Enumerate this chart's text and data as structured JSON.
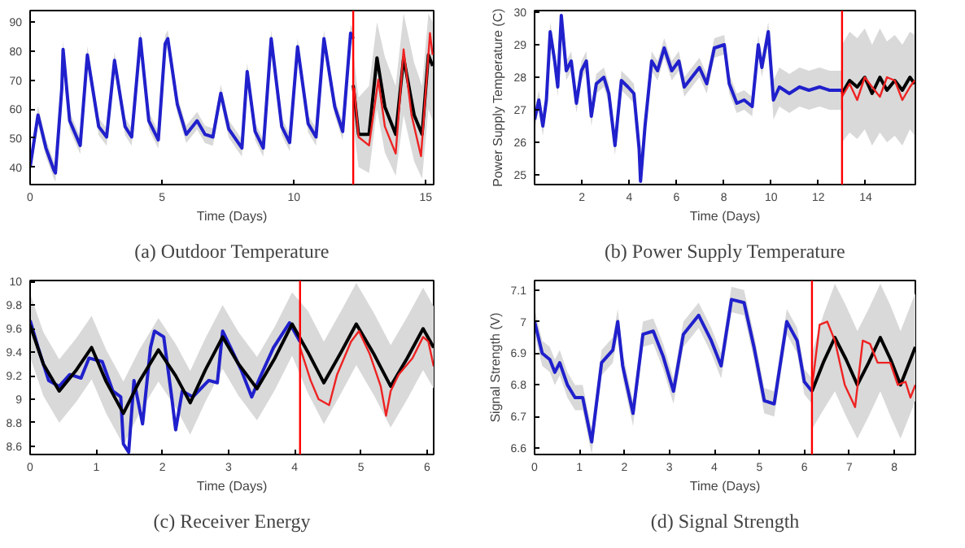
{
  "chart_data": [
    {
      "type": "line",
      "title": "(a) Outdoor Temperature",
      "xlabel": "Time (Days)",
      "xlim": [
        0,
        15.3
      ],
      "ylim": [
        34,
        94
      ],
      "xticks": [
        0,
        5,
        10,
        15
      ],
      "yticks": [
        40,
        50,
        60,
        70,
        80,
        90
      ],
      "ref_lines": [
        {
          "axis": "x",
          "value": 12.25,
          "color": "#ff0000"
        }
      ],
      "series": [
        {
          "color": "#2020cc",
          "x": [
            0,
            0.3,
            0.6,
            0.9,
            0.96,
            1.2,
            1.25,
            1.5,
            1.9,
            2.17,
            2.6,
            2.9,
            3.2,
            3.6,
            3.85,
            4.18,
            4.5,
            4.86,
            5.12,
            5.22,
            5.58,
            5.92,
            6.33,
            6.63,
            6.93,
            7.23,
            7.53,
            8.03,
            8.23,
            8.53,
            8.84,
            9.14,
            9.54,
            9.84,
            10.14,
            10.54,
            10.84,
            11.14,
            11.55,
            11.85,
            12.15,
            12.25
          ],
          "values": [
            40,
            58,
            46.6,
            39,
            38,
            67,
            80.6,
            56,
            47.5,
            78.7,
            54,
            50.4,
            76.8,
            54,
            50.4,
            84.3,
            56,
            49.4,
            82.5,
            84.3,
            61.7,
            51.3,
            56,
            51.3,
            50.4,
            65.5,
            53.2,
            46.6,
            73,
            52.3,
            46.6,
            84.3,
            54,
            48.5,
            81.5,
            55,
            50.4,
            84.3,
            60.8,
            52.3,
            86.2,
            84.3
          ],
          "lower": [
            37,
            55,
            43.6,
            36,
            35,
            64,
            77.6,
            53,
            44.5,
            75.7,
            51,
            47.4,
            73.8,
            51,
            47.4,
            81.3,
            53,
            46.4,
            79.5,
            81.3,
            58.7,
            48.3,
            53,
            48.3,
            47.4,
            62.5,
            50.2,
            43.6,
            70,
            49.3,
            43.6,
            81.3,
            51,
            45.5,
            78.5,
            52,
            47.4,
            81.3,
            57.8,
            49.3,
            83.2,
            81.3
          ],
          "upper": [
            43,
            61,
            49.6,
            42,
            41,
            70,
            83.6,
            59,
            50.5,
            81.7,
            57,
            53.4,
            79.8,
            57,
            53.4,
            87.3,
            59,
            52.4,
            85.5,
            87.3,
            64.7,
            54.3,
            59,
            54.3,
            53.4,
            68.5,
            56.2,
            49.6,
            76,
            55.3,
            49.6,
            87.3,
            57,
            51.5,
            84.5,
            58,
            53.4,
            87.3,
            63.8,
            55.3,
            89.2,
            87.3
          ]
        },
        {
          "color": "#000000",
          "x": [
            12.25,
            12.45,
            12.85,
            13.15,
            13.45,
            13.86,
            14.16,
            14.56,
            14.86,
            15.1,
            15.26
          ],
          "values": [
            68.3,
            51.3,
            51.3,
            77.7,
            60.8,
            51.3,
            77.7,
            58,
            51.3,
            78.7,
            74.9
          ],
          "lower": [
            55,
            40,
            38,
            60,
            45,
            37,
            58,
            42,
            36,
            60,
            56
          ],
          "upper": [
            80,
            64,
            68,
            90,
            78,
            68,
            93,
            76,
            68,
            93,
            90
          ]
        },
        {
          "color": "#ee2222",
          "x": [
            12.29,
            12.45,
            12.85,
            13.2,
            13.45,
            13.86,
            14.16,
            14.46,
            14.82,
            15.16,
            15.26
          ],
          "values": [
            67.4,
            50.4,
            47.5,
            70.2,
            54,
            44.7,
            80.6,
            58,
            43.8,
            86.2,
            78.7
          ]
        }
      ]
    },
    {
      "type": "line",
      "title": "(b) Power Supply Temperature",
      "xlabel": "Time (Days)",
      "ylabel": "Power Supply Temperature (C)",
      "xlim": [
        0,
        16.1
      ],
      "ylim": [
        24.7,
        30.05
      ],
      "xticks": [
        2,
        4,
        6,
        8,
        10,
        12,
        14
      ],
      "yticks": [
        25,
        26,
        27,
        28,
        29,
        30
      ],
      "ref_lines": [
        {
          "axis": "x",
          "value": 13.0,
          "color": "#ff0000"
        }
      ],
      "series": [
        {
          "color": "#2020cc",
          "x": [
            0,
            0.18,
            0.35,
            0.5,
            0.66,
            0.85,
            0.98,
            1.13,
            1.34,
            1.55,
            1.77,
            1.98,
            2.19,
            2.4,
            2.61,
            2.93,
            3.14,
            3.4,
            3.67,
            3.95,
            4.2,
            4.42,
            4.48,
            4.67,
            4.95,
            5.2,
            5.48,
            5.8,
            6.1,
            6.33,
            6.65,
            6.97,
            7.28,
            7.6,
            8.02,
            8.23,
            8.55,
            8.86,
            9.2,
            9.46,
            9.61,
            9.88,
            10.1,
            10.35,
            10.77,
            11.2,
            11.6,
            12.05,
            12.47,
            13.0
          ],
          "values": [
            26.7,
            27.3,
            26.5,
            27.3,
            29.4,
            28.5,
            27.7,
            29.9,
            28.2,
            28.5,
            27.2,
            28.2,
            28.5,
            26.8,
            27.8,
            28,
            27.5,
            25.9,
            27.9,
            27.7,
            27.5,
            25.8,
            24.8,
            26.5,
            28.5,
            28.2,
            28.9,
            28.2,
            28.5,
            27.7,
            28,
            28.3,
            27.8,
            28.9,
            29,
            27.8,
            27.2,
            27.3,
            27.1,
            29,
            28.3,
            29.4,
            27.3,
            27.7,
            27.5,
            27.7,
            27.6,
            27.7,
            27.6,
            27.6
          ],
          "lower": [
            26.4,
            27,
            26.2,
            27,
            29.1,
            28.2,
            27.4,
            29.6,
            27.9,
            28.2,
            26.9,
            27.9,
            28.2,
            26.5,
            27.5,
            27.7,
            27.2,
            25.6,
            27.6,
            27.4,
            27.2,
            25.5,
            24.7,
            26.2,
            28.2,
            27.9,
            28.6,
            27.9,
            28.2,
            27.4,
            27.7,
            28,
            27.5,
            28.6,
            28.7,
            27.5,
            26.9,
            27,
            26.8,
            28.7,
            28,
            29.1,
            26.7,
            27.1,
            26.9,
            27.1,
            27,
            27.1,
            27,
            27
          ],
          "upper": [
            27,
            27.6,
            26.8,
            27.6,
            29.7,
            28.8,
            28,
            30.05,
            28.5,
            28.8,
            27.5,
            28.5,
            28.8,
            27.1,
            28.1,
            28.3,
            27.8,
            26.2,
            28.2,
            28,
            27.8,
            26.1,
            25.1,
            26.8,
            28.8,
            28.5,
            29.2,
            28.5,
            28.8,
            28,
            28.3,
            28.6,
            28.1,
            29.2,
            29.3,
            28.1,
            27.5,
            27.6,
            27.4,
            29.3,
            28.6,
            29.7,
            27.9,
            28.3,
            28.1,
            28.3,
            28.2,
            28.3,
            28.2,
            28.2
          ]
        },
        {
          "color": "#000000",
          "x": [
            13,
            13.32,
            13.64,
            13.96,
            14.27,
            14.6,
            14.9,
            15.23,
            15.55,
            15.87,
            16.07
          ],
          "values": [
            27.5,
            27.9,
            27.7,
            28,
            27.5,
            28,
            27.6,
            27.9,
            27.6,
            28,
            27.8
          ],
          "lower": [
            26,
            26.3,
            26.1,
            26.4,
            25.9,
            26.3,
            26,
            26.2,
            25.9,
            26.4,
            26.2
          ],
          "upper": [
            29,
            29.4,
            29.2,
            29.5,
            29,
            29.5,
            29.1,
            29.3,
            29,
            29.4,
            29.3
          ]
        },
        {
          "color": "#ee2222",
          "x": [
            13,
            13.32,
            13.64,
            13.96,
            14.27,
            14.6,
            14.9,
            15.23,
            15.55,
            15.87,
            16.07
          ],
          "values": [
            27.4,
            27.8,
            27.3,
            28,
            27.7,
            27.4,
            28,
            27.9,
            27.3,
            27.7,
            27.9
          ]
        }
      ]
    },
    {
      "type": "line",
      "title": "(c) Receiver Energy",
      "xlabel": "Time (Days)",
      "xlim": [
        0,
        6.1
      ],
      "ylim": [
        8.53,
        10.01
      ],
      "xticks": [
        0,
        1,
        2,
        3,
        4,
        5,
        6
      ],
      "yticks": [
        8.6,
        8.8,
        9,
        9.2,
        9.4,
        9.6,
        9.8,
        10
      ],
      "ref_lines": [
        {
          "axis": "x",
          "value": 4.08,
          "color": "#ff0000"
        }
      ],
      "series": [
        {
          "color": "#2020cc",
          "x": [
            0,
            0.12,
            0.28,
            0.44,
            0.6,
            0.77,
            0.89,
            1.09,
            1.25,
            1.37,
            1.41,
            1.49,
            1.57,
            1.7,
            1.82,
            1.88,
            2.02,
            2.14,
            2.2,
            2.3,
            2.46,
            2.7,
            2.83,
            2.91,
            3.03,
            3.19,
            3.35,
            3.47,
            3.68,
            3.92,
            4.08
          ],
          "values": [
            9.67,
            9.44,
            9.16,
            9.11,
            9.21,
            9.18,
            9.35,
            9.32,
            9.07,
            9.02,
            8.62,
            8.55,
            9.16,
            8.79,
            9.44,
            9.58,
            9.53,
            9.02,
            8.74,
            9.07,
            9.02,
            9.16,
            9.14,
            9.58,
            9.44,
            9.25,
            9.02,
            9.18,
            9.44,
            9.65,
            9.49
          ]
        },
        {
          "color": "#000000",
          "x": [
            0,
            0.2,
            0.44,
            0.7,
            0.93,
            1.15,
            1.41,
            1.65,
            1.94,
            2.2,
            2.42,
            2.65,
            2.91,
            3.15,
            3.43,
            3.7,
            3.96,
            4.2,
            4.44,
            4.7,
            4.93,
            5.2,
            5.45,
            5.7,
            5.94,
            6.1
          ],
          "values": [
            9.63,
            9.3,
            9.07,
            9.25,
            9.44,
            9.15,
            8.88,
            9.15,
            9.42,
            9.2,
            8.97,
            9.25,
            9.53,
            9.3,
            9.09,
            9.35,
            9.64,
            9.4,
            9.14,
            9.4,
            9.64,
            9.38,
            9.11,
            9.35,
            9.6,
            9.44
          ],
          "lower": [
            9.36,
            9.03,
            8.8,
            8.98,
            9.17,
            8.88,
            8.61,
            8.88,
            9.15,
            8.93,
            8.7,
            8.98,
            9.26,
            9.03,
            8.82,
            9.08,
            9.37,
            9.05,
            8.79,
            9.05,
            9.29,
            9.03,
            8.76,
            9.0,
            9.25,
            9.09
          ],
          "upper": [
            9.9,
            9.57,
            9.34,
            9.52,
            9.71,
            9.42,
            9.15,
            9.42,
            9.69,
            9.47,
            9.24,
            9.52,
            9.8,
            9.57,
            9.36,
            9.62,
            9.91,
            9.75,
            9.49,
            9.75,
            9.99,
            9.73,
            9.46,
            9.7,
            9.95,
            9.79
          ]
        },
        {
          "color": "#ee2222",
          "x": [
            4.08,
            4.24,
            4.36,
            4.52,
            4.64,
            4.85,
            4.97,
            5.13,
            5.3,
            5.38,
            5.45,
            5.57,
            5.78,
            5.94,
            6.02,
            6.1
          ],
          "values": [
            9.44,
            9.16,
            9.0,
            8.95,
            9.21,
            9.49,
            9.58,
            9.39,
            9.11,
            8.86,
            9.07,
            9.21,
            9.35,
            9.53,
            9.49,
            9.28
          ]
        }
      ]
    },
    {
      "type": "line",
      "title": "(d) Signal Strength",
      "xlabel": "Time (Days)",
      "ylabel": "Signal Strength (V)",
      "xlim": [
        0,
        8.47
      ],
      "ylim": [
        6.58,
        7.13
      ],
      "xticks": [
        0,
        1,
        2,
        3,
        4,
        5,
        6,
        7,
        8
      ],
      "yticks": [
        6.6,
        6.7,
        6.8,
        6.9,
        7,
        7.1
      ],
      "ref_lines": [
        {
          "axis": "x",
          "value": 6.17,
          "color": "#ff0000"
        }
      ],
      "series": [
        {
          "color": "#2020cc",
          "x": [
            0,
            0.17,
            0.34,
            0.45,
            0.56,
            0.73,
            0.9,
            1.07,
            1.27,
            1.49,
            1.74,
            1.85,
            1.96,
            2.19,
            2.41,
            2.64,
            2.86,
            3.09,
            3.31,
            3.65,
            3.93,
            4.15,
            4.38,
            4.66,
            4.88,
            5.11,
            5.33,
            5.61,
            5.84,
            6.0,
            6.17
          ],
          "values": [
            7.0,
            6.9,
            6.88,
            6.84,
            6.87,
            6.8,
            6.76,
            6.76,
            6.62,
            6.87,
            6.91,
            7.0,
            6.86,
            6.71,
            6.96,
            6.97,
            6.89,
            6.78,
            6.96,
            7.02,
            6.94,
            6.86,
            7.07,
            7.06,
            6.92,
            6.75,
            6.74,
            7.0,
            6.94,
            6.81,
            6.78
          ],
          "lower": [
            6.96,
            6.86,
            6.84,
            6.8,
            6.83,
            6.76,
            6.72,
            6.72,
            6.58,
            6.83,
            6.87,
            6.96,
            6.82,
            6.67,
            6.92,
            6.93,
            6.85,
            6.74,
            6.92,
            6.98,
            6.9,
            6.82,
            7.03,
            7.02,
            6.88,
            6.71,
            6.7,
            6.96,
            6.9,
            6.77,
            6.74
          ],
          "upper": [
            7.04,
            6.94,
            6.92,
            6.88,
            6.91,
            6.84,
            6.8,
            6.8,
            6.66,
            6.91,
            6.95,
            7.04,
            6.9,
            6.75,
            7.0,
            7.01,
            6.93,
            6.82,
            7.0,
            7.06,
            6.98,
            6.9,
            7.11,
            7.1,
            6.96,
            6.79,
            6.78,
            7.04,
            6.98,
            6.85,
            6.82
          ]
        },
        {
          "color": "#000000",
          "x": [
            6.17,
            6.42,
            6.68,
            6.93,
            7.18,
            7.43,
            7.69,
            7.92,
            8.14,
            8.47
          ],
          "values": [
            6.78,
            6.87,
            6.95,
            6.88,
            6.8,
            6.87,
            6.95,
            6.88,
            6.8,
            6.92
          ],
          "lower": [
            6.66,
            6.72,
            6.78,
            6.7,
            6.63,
            6.7,
            6.78,
            6.7,
            6.63,
            6.75
          ],
          "upper": [
            6.9,
            7.02,
            7.12,
            7.05,
            6.97,
            7.04,
            7.12,
            7.05,
            6.97,
            7.09
          ]
        },
        {
          "color": "#ee2222",
          "x": [
            6.17,
            6.34,
            6.51,
            6.68,
            6.9,
            7.13,
            7.3,
            7.46,
            7.63,
            7.91,
            8.08,
            8.25,
            8.36,
            8.47
          ],
          "values": [
            6.79,
            6.99,
            7.0,
            6.94,
            6.8,
            6.73,
            6.94,
            6.93,
            6.87,
            6.87,
            6.8,
            6.81,
            6.76,
            6.8
          ]
        }
      ]
    }
  ]
}
